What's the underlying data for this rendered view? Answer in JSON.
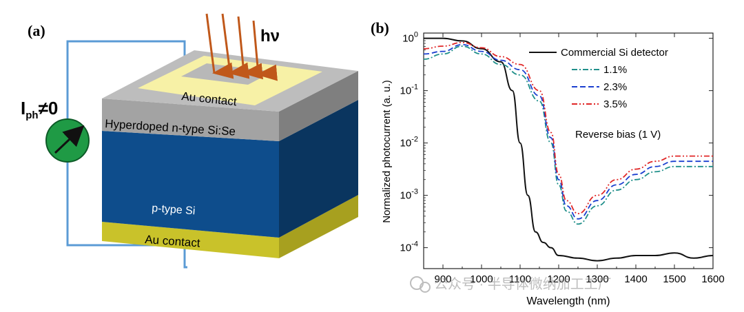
{
  "panel_a": {
    "label": "(a)",
    "photon_label": "hν",
    "current_label": {
      "main": "I",
      "sub": "ph",
      "rest": "≠0"
    },
    "top_contact_label": "Au contact",
    "hyperdoped_label": "Hyperdoped n-type Si:Se",
    "substrate_label": "p-type Si",
    "bottom_contact_label": "Au contact",
    "colors": {
      "wire": "#5b9bd5",
      "arrow": "#c0581a",
      "gold_light": "#f7f1a6",
      "gold_bottom": "#c9c22a",
      "gray_top": "#bdbdbd",
      "gray_front": "#a3a3a3",
      "blue_front": "#0e4d8c",
      "blue_side": "#0a355f",
      "meter": "#1f9a45"
    }
  },
  "panel_b": {
    "label": "(b)",
    "watermark": "公众号 · 半导体微纳加工工厂",
    "chart_data": {
      "type": "line",
      "xscale": "linear",
      "yscale": "log",
      "xlabel": "Wavelength (nm)",
      "ylabel": "Normalized photocurrent (a. u.)",
      "xlim": [
        850,
        1600
      ],
      "ylim_exponents": [
        -4.4,
        0.1
      ],
      "xticks": [
        900,
        1000,
        1100,
        1200,
        1300,
        1400,
        1500,
        1600
      ],
      "ytick_labels": [
        {
          "base": "10",
          "exp": "-4",
          "value_exp": -4
        },
        {
          "base": "10",
          "exp": "-3",
          "value_exp": -3
        },
        {
          "base": "10",
          "exp": "-2",
          "value_exp": -2
        },
        {
          "base": "10",
          "exp": "-1",
          "value_exp": -1
        },
        {
          "base": "10",
          "exp": "0",
          "value_exp": 0
        }
      ],
      "annotation": "Reverse bias (1 V)",
      "series": [
        {
          "name": "Commercial Si detector",
          "color": "#111111",
          "dash": "solid",
          "x": [
            850,
            900,
            950,
            1000,
            1050,
            1080,
            1100,
            1120,
            1140,
            1160,
            1180,
            1200,
            1250,
            1300,
            1350,
            1400,
            1450,
            1500,
            1550,
            1600
          ],
          "y_exp": [
            0,
            0,
            -0.05,
            -0.2,
            -0.45,
            -1.0,
            -2.0,
            -3.0,
            -3.7,
            -3.9,
            -4.0,
            -4.15,
            -4.2,
            -4.25,
            -4.2,
            -4.15,
            -4.15,
            -4.1,
            -4.2,
            -4.15
          ]
        },
        {
          "name": "1.1%",
          "color": "#1f8f8a",
          "dash": "dashdot",
          "x": [
            850,
            900,
            950,
            1000,
            1050,
            1100,
            1150,
            1180,
            1200,
            1220,
            1250,
            1300,
            1350,
            1400,
            1450,
            1500,
            1550,
            1600
          ],
          "y_exp": [
            -0.4,
            -0.3,
            -0.15,
            -0.3,
            -0.5,
            -0.7,
            -1.2,
            -2.0,
            -2.8,
            -3.3,
            -3.55,
            -3.2,
            -2.9,
            -2.7,
            -2.55,
            -2.45,
            -2.45,
            -2.45
          ]
        },
        {
          "name": "2.3%",
          "color": "#1a3ecf",
          "dash": "dashed",
          "x": [
            850,
            900,
            950,
            1000,
            1050,
            1100,
            1150,
            1180,
            1200,
            1220,
            1250,
            1300,
            1350,
            1400,
            1450,
            1500,
            1550,
            1600
          ],
          "y_exp": [
            -0.3,
            -0.25,
            -0.12,
            -0.25,
            -0.42,
            -0.6,
            -1.1,
            -1.9,
            -2.7,
            -3.2,
            -3.45,
            -3.1,
            -2.8,
            -2.6,
            -2.45,
            -2.35,
            -2.35,
            -2.35
          ]
        },
        {
          "name": "3.5%",
          "color": "#e02626",
          "dash": "dashdotdot",
          "x": [
            850,
            900,
            950,
            1000,
            1050,
            1100,
            1150,
            1180,
            1200,
            1220,
            1250,
            1300,
            1350,
            1400,
            1450,
            1500,
            1550,
            1600
          ],
          "y_exp": [
            -0.2,
            -0.15,
            -0.08,
            -0.18,
            -0.35,
            -0.5,
            -1.0,
            -1.8,
            -2.6,
            -3.1,
            -3.35,
            -3.0,
            -2.7,
            -2.5,
            -2.35,
            -2.25,
            -2.25,
            -2.25
          ]
        }
      ]
    }
  }
}
